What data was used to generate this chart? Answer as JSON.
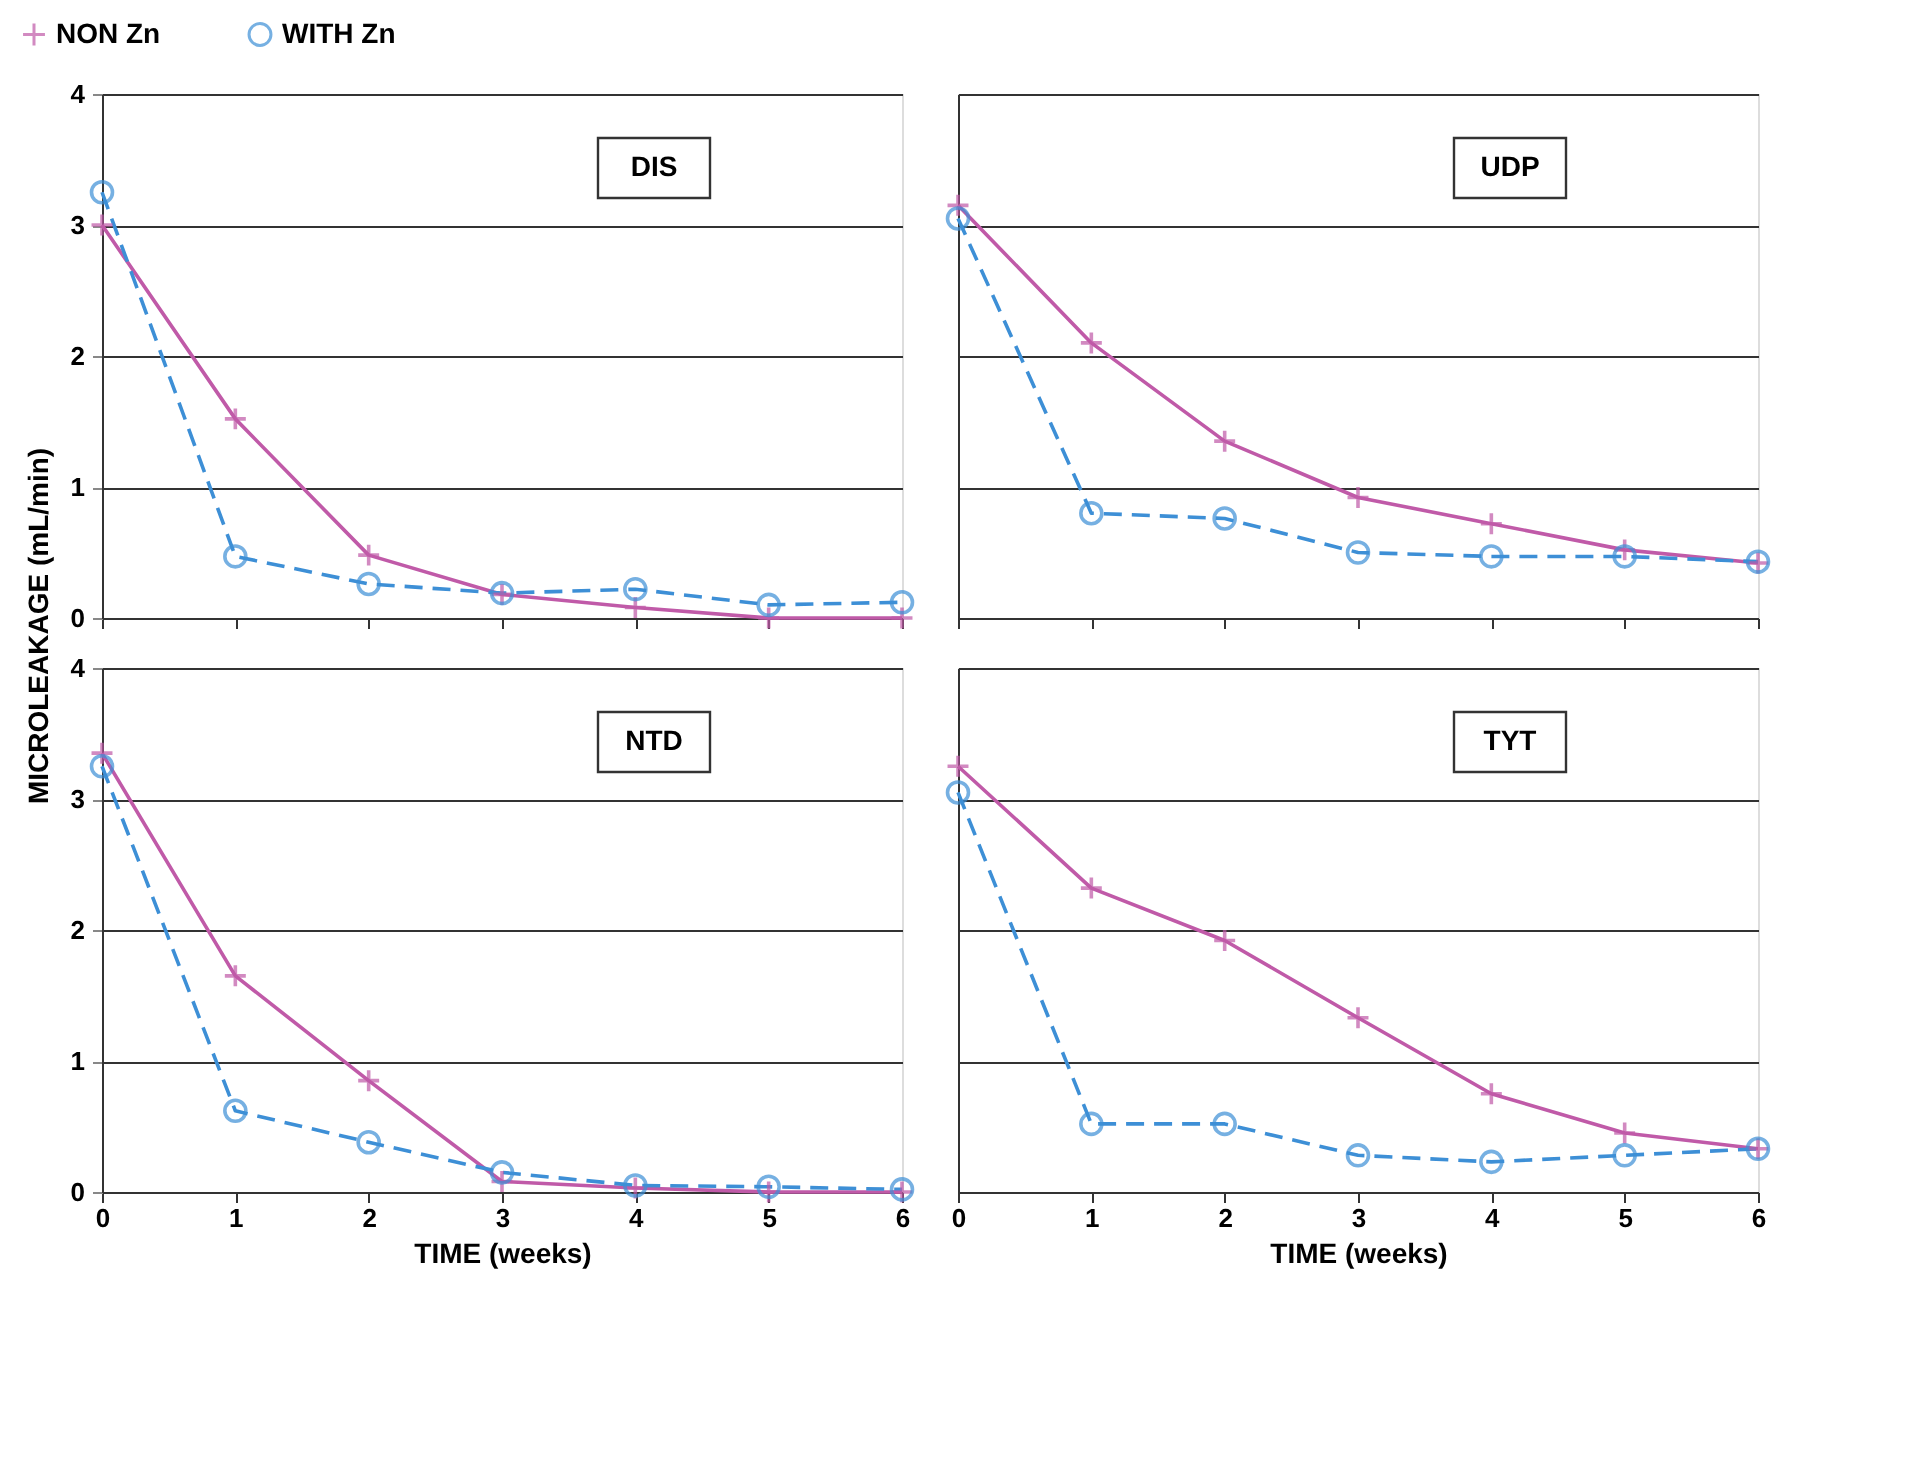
{
  "chart_data": [
    {
      "type": "line",
      "annotations": [
        "DIS"
      ],
      "ylabel": "MICROLEAKAGE (mL/min)",
      "x": [
        0,
        1,
        2,
        3,
        4,
        5,
        6
      ],
      "xlim": [
        0,
        6
      ],
      "xticks": [
        0,
        1,
        2,
        3,
        4,
        5,
        6
      ],
      "ylim": [
        0,
        4
      ],
      "yticks": [
        0,
        1,
        2,
        3,
        4
      ],
      "grid": "y",
      "legend": "top",
      "tick_labels": "y",
      "series": [
        {
          "name": "NON Zn",
          "color": "#c05aa8",
          "marker": "cross",
          "line_style": "solid",
          "values": [
            3.0,
            1.52,
            0.48,
            0.18,
            0.08,
            0.0,
            0.0
          ]
        },
        {
          "name": "WITH Zn",
          "color": "#3d8fd6",
          "marker": "circle",
          "line_style": "dashed",
          "values": [
            3.25,
            0.47,
            0.26,
            0.19,
            0.22,
            0.1,
            0.12
          ]
        }
      ]
    },
    {
      "type": "line",
      "annotations": [
        "UDP"
      ],
      "x": [
        0,
        1,
        2,
        3,
        4,
        5,
        6
      ],
      "xlim": [
        0,
        6
      ],
      "xticks": [
        0,
        1,
        2,
        3,
        4,
        5,
        6
      ],
      "ylim": [
        0,
        4
      ],
      "yticks": [
        0,
        1,
        2,
        3,
        4
      ],
      "grid": "y",
      "tick_labels": false,
      "series": [
        {
          "name": "NON Zn",
          "color": "#c05aa8",
          "marker": "cross",
          "line_style": "solid",
          "values": [
            3.15,
            2.1,
            1.35,
            0.92,
            0.72,
            0.52,
            0.42
          ]
        },
        {
          "name": "WITH Zn",
          "color": "#3d8fd6",
          "marker": "circle",
          "line_style": "dashed",
          "values": [
            3.05,
            0.8,
            0.76,
            0.5,
            0.47,
            0.47,
            0.43
          ]
        }
      ]
    },
    {
      "type": "line",
      "annotations": [
        "NTD"
      ],
      "xlabel": "TIME (weeks)",
      "x": [
        0,
        1,
        2,
        3,
        4,
        5,
        6
      ],
      "xlim": [
        0,
        6
      ],
      "xticks": [
        0,
        1,
        2,
        3,
        4,
        5,
        6
      ],
      "ylim": [
        0,
        4
      ],
      "yticks": [
        0,
        1,
        2,
        3,
        4
      ],
      "grid": "y",
      "series": [
        {
          "name": "NON Zn",
          "color": "#c05aa8",
          "marker": "cross",
          "line_style": "solid",
          "values": [
            3.35,
            1.65,
            0.85,
            0.08,
            0.03,
            0.0,
            0.0
          ]
        },
        {
          "name": "WITH Zn",
          "color": "#3d8fd6",
          "marker": "circle",
          "line_style": "dashed",
          "values": [
            3.25,
            0.62,
            0.38,
            0.15,
            0.05,
            0.04,
            0.02
          ]
        }
      ]
    },
    {
      "type": "line",
      "annotations": [
        "TYT"
      ],
      "xlabel": "TIME (weeks)",
      "x": [
        0,
        1,
        2,
        3,
        4,
        5,
        6
      ],
      "xlim": [
        0,
        6
      ],
      "xticks": [
        0,
        1,
        2,
        3,
        4,
        5,
        6
      ],
      "ylim": [
        0,
        4
      ],
      "yticks": [
        0,
        1,
        2,
        3,
        4
      ],
      "grid": "y",
      "tick_labels": "x",
      "series": [
        {
          "name": "NON Zn",
          "color": "#c05aa8",
          "marker": "cross",
          "line_style": "solid",
          "values": [
            3.25,
            2.32,
            1.92,
            1.33,
            0.75,
            0.45,
            0.33
          ]
        },
        {
          "name": "WITH Zn",
          "color": "#3d8fd6",
          "marker": "circle",
          "line_style": "dashed",
          "values": [
            3.05,
            0.52,
            0.52,
            0.28,
            0.23,
            0.28,
            0.33
          ]
        }
      ]
    }
  ]
}
